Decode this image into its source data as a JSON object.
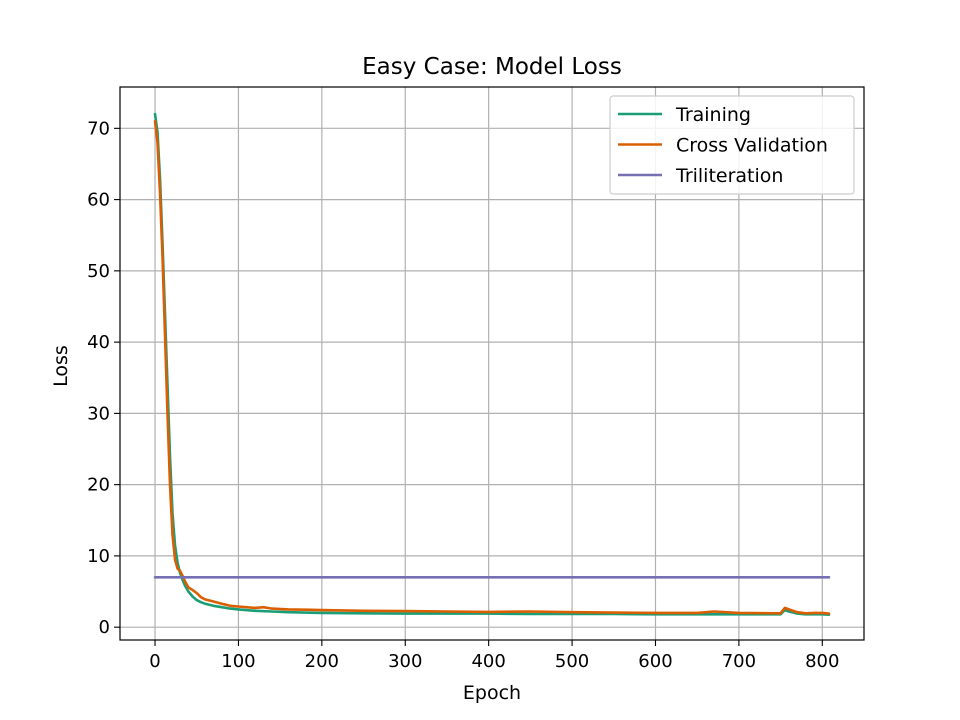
{
  "chart_data": {
    "type": "line",
    "title": "Easy Case: Model Loss",
    "xlabel": "Epoch",
    "ylabel": "Loss",
    "xlim": [
      -42,
      850
    ],
    "ylim": [
      -1.8,
      75.8
    ],
    "xticks": [
      0,
      100,
      200,
      300,
      400,
      500,
      600,
      700,
      800
    ],
    "yticks": [
      0,
      10,
      20,
      30,
      40,
      50,
      60,
      70
    ],
    "grid": true,
    "legend_position": "top-right",
    "series": [
      {
        "name": "Training",
        "color": "#1b9e77",
        "x": [
          0,
          3,
          6,
          9,
          12,
          15,
          18,
          21,
          24,
          27,
          30,
          33,
          36,
          40,
          45,
          50,
          55,
          60,
          70,
          80,
          90,
          100,
          120,
          140,
          160,
          180,
          200,
          250,
          300,
          350,
          400,
          450,
          500,
          550,
          600,
          650,
          700,
          750,
          755,
          760,
          770,
          780,
          790,
          800,
          808
        ],
        "y": [
          72.0,
          69.5,
          63.0,
          54.0,
          44.0,
          34.0,
          24.0,
          16.0,
          11.5,
          9.0,
          7.6,
          6.6,
          5.8,
          5.0,
          4.3,
          3.8,
          3.5,
          3.3,
          3.0,
          2.8,
          2.6,
          2.5,
          2.3,
          2.2,
          2.1,
          2.05,
          2.0,
          1.95,
          1.9,
          1.9,
          1.9,
          1.85,
          1.85,
          1.85,
          1.8,
          1.8,
          1.8,
          1.8,
          2.4,
          2.2,
          1.9,
          1.8,
          1.8,
          1.8,
          1.75
        ]
      },
      {
        "name": "Cross Validation",
        "color": "#d95f02",
        "x": [
          0,
          3,
          6,
          9,
          12,
          15,
          18,
          21,
          24,
          27,
          30,
          33,
          36,
          40,
          45,
          50,
          55,
          60,
          70,
          80,
          90,
          100,
          120,
          130,
          140,
          160,
          180,
          200,
          250,
          300,
          350,
          400,
          450,
          500,
          550,
          600,
          650,
          670,
          700,
          750,
          755,
          760,
          770,
          780,
          790,
          800,
          808
        ],
        "y": [
          71.0,
          68.0,
          61.0,
          52.0,
          41.0,
          30.0,
          20.0,
          13.0,
          9.5,
          8.2,
          7.9,
          7.2,
          6.4,
          5.6,
          5.2,
          4.8,
          4.2,
          3.9,
          3.6,
          3.3,
          3.0,
          2.9,
          2.7,
          2.8,
          2.6,
          2.5,
          2.45,
          2.4,
          2.3,
          2.25,
          2.2,
          2.15,
          2.2,
          2.1,
          2.05,
          2.0,
          2.0,
          2.2,
          2.0,
          1.95,
          2.7,
          2.5,
          2.1,
          1.95,
          2.0,
          2.0,
          1.9
        ]
      },
      {
        "name": "Triliteration",
        "color": "#7570b3",
        "x": [
          0,
          808
        ],
        "y": [
          7.0,
          7.0
        ]
      }
    ]
  }
}
